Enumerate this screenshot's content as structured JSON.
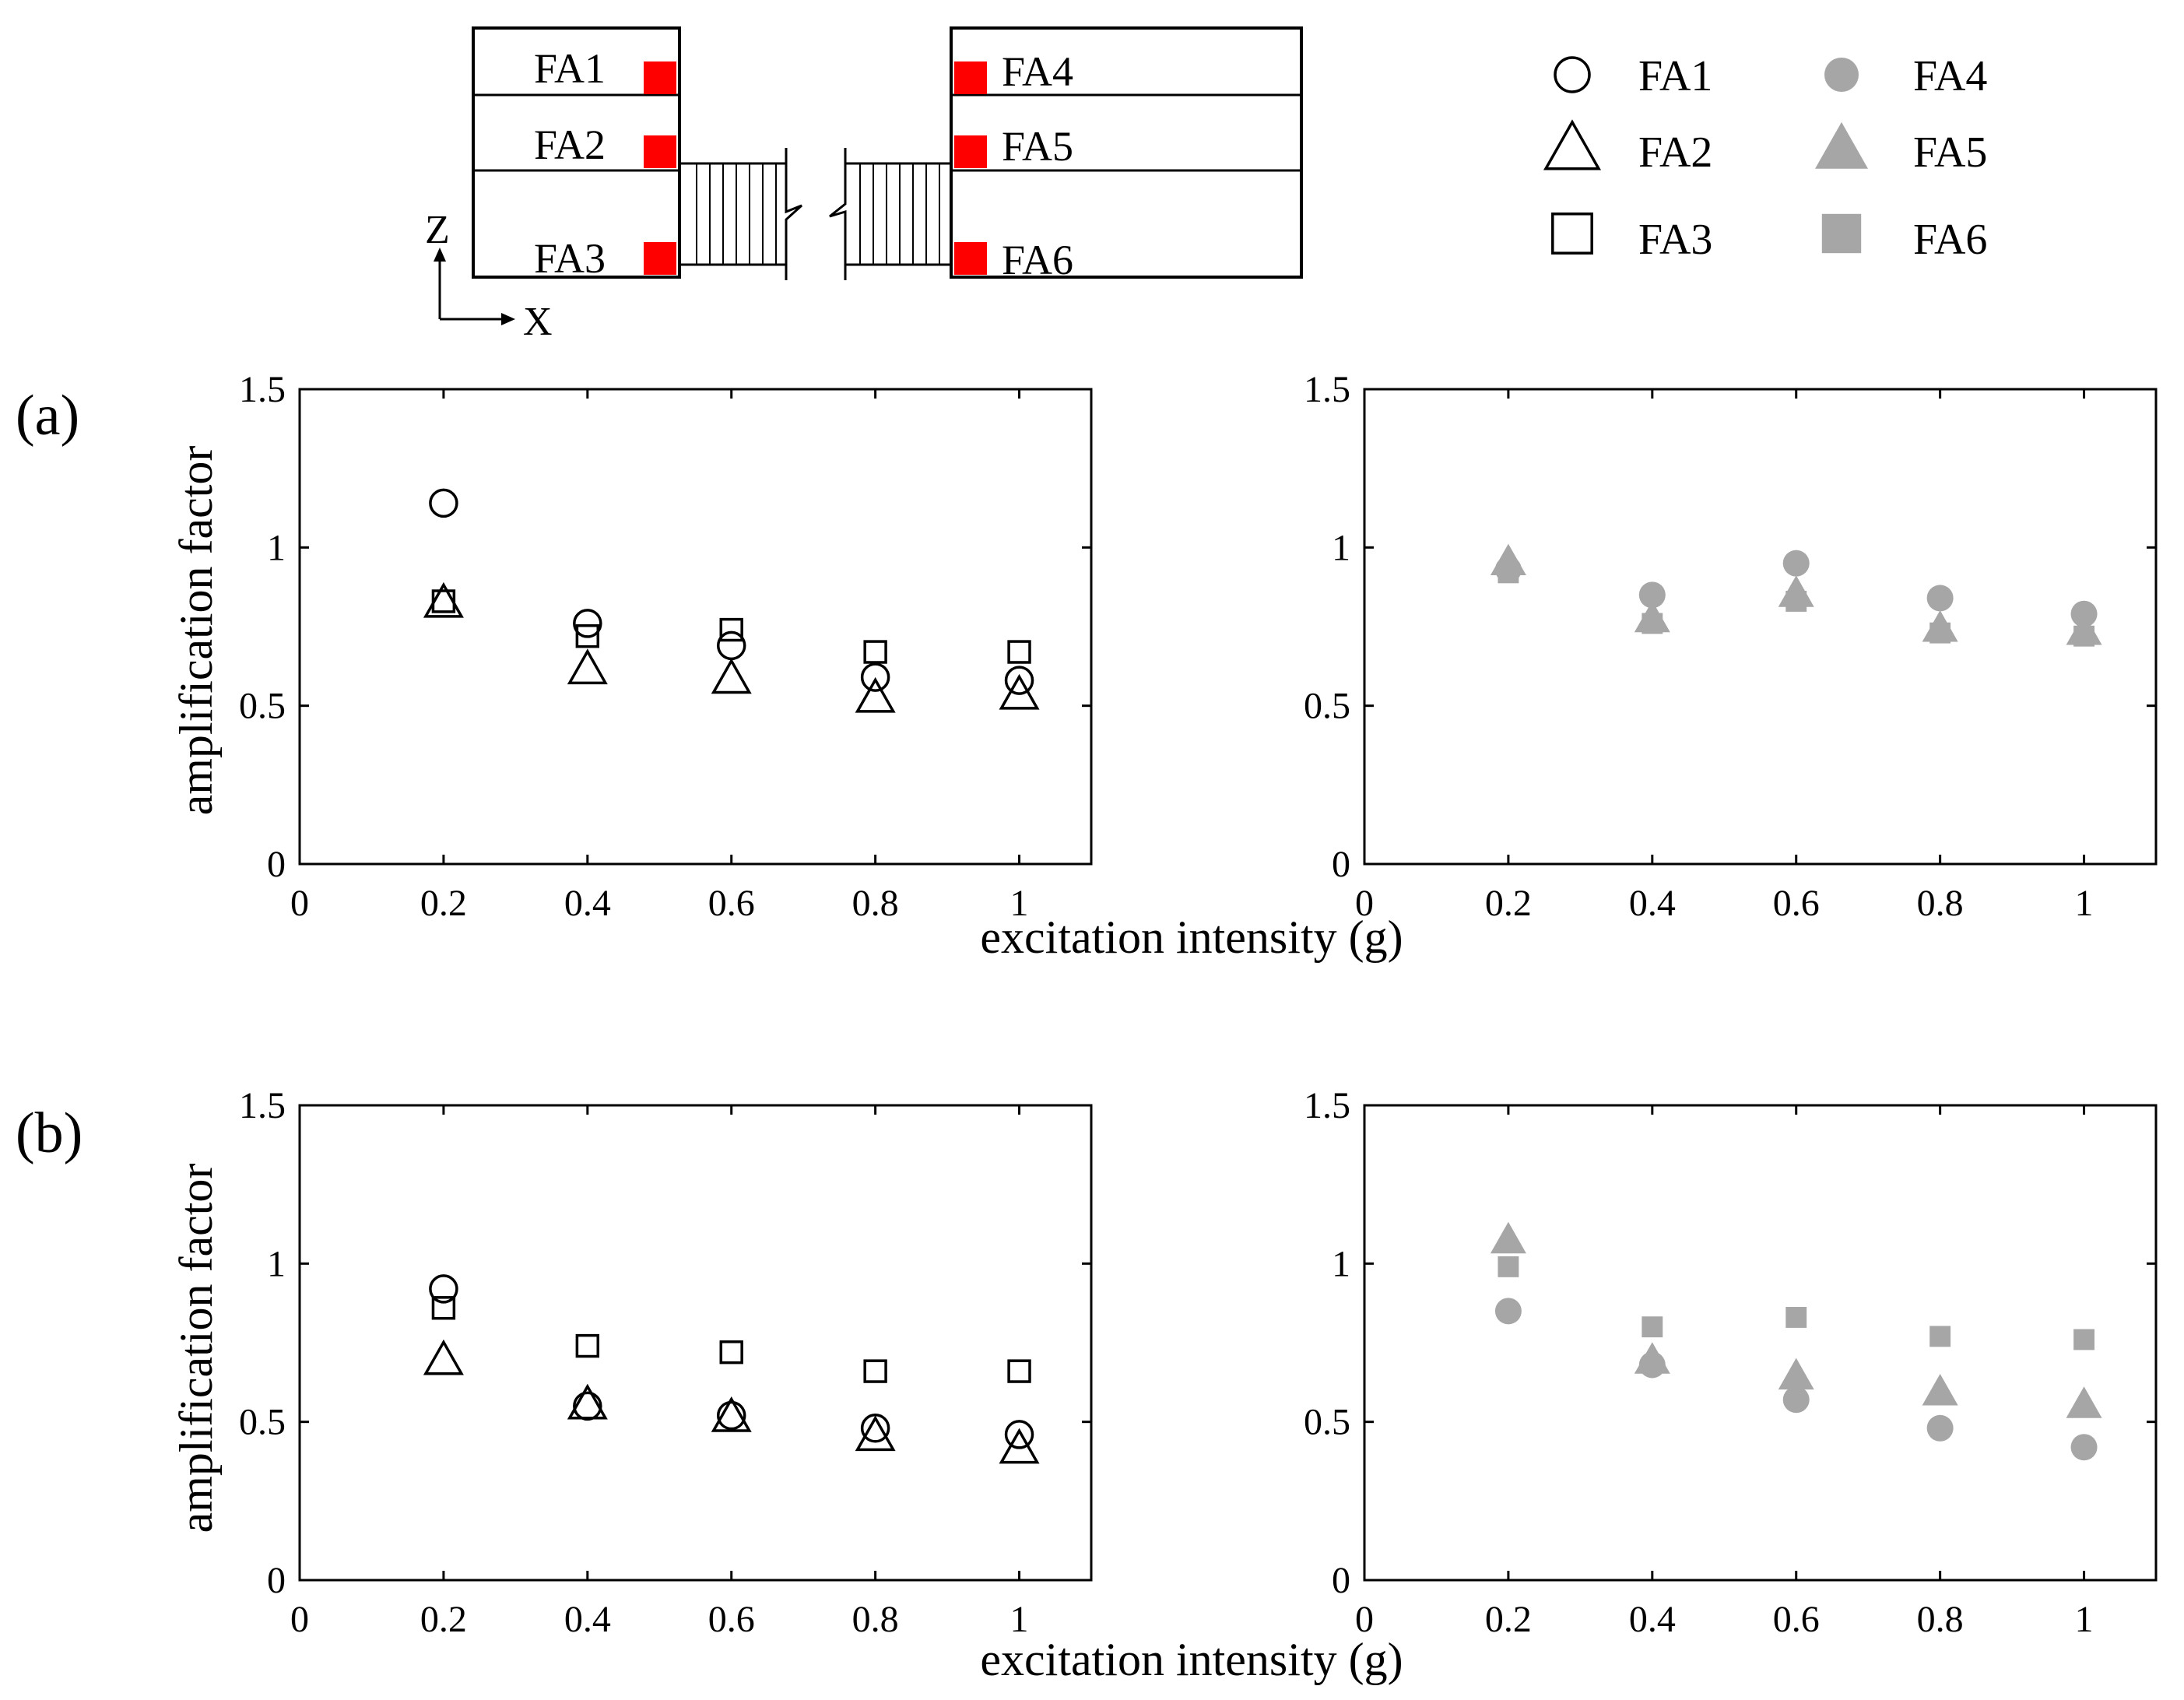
{
  "schematic": {
    "labels": [
      "FA1",
      "FA2",
      "FA3",
      "FA4",
      "FA5",
      "FA6"
    ],
    "axis_z": "Z",
    "axis_x": "X",
    "sensor_color": "#ff0000"
  },
  "legend": {
    "entries": [
      {
        "name": "FA1",
        "marker": "circle",
        "fill": "none",
        "color": "#000000"
      },
      {
        "name": "FA2",
        "marker": "triangle",
        "fill": "none",
        "color": "#000000"
      },
      {
        "name": "FA3",
        "marker": "square",
        "fill": "none",
        "color": "#000000"
      },
      {
        "name": "FA4",
        "marker": "circle",
        "fill": "solid",
        "color": "#a6a6a6"
      },
      {
        "name": "FA5",
        "marker": "triangle",
        "fill": "solid",
        "color": "#a6a6a6"
      },
      {
        "name": "FA6",
        "marker": "square",
        "fill": "solid",
        "color": "#a6a6a6"
      }
    ]
  },
  "rows": [
    {
      "label": "(a)",
      "ylabel": "amplification factor"
    },
    {
      "label": "(b)",
      "ylabel": "amplification factor"
    }
  ],
  "xlabel": "excitation intensity (g)",
  "chart_data": [
    {
      "type": "scatter",
      "panel": "(a) left",
      "xlabel": "excitation intensity (g)",
      "ylabel": "amplification factor",
      "xlim": [
        0,
        1.1
      ],
      "ylim": [
        0,
        1.5
      ],
      "xticks": [
        "0",
        "0.2",
        "0.4",
        "0.6",
        "0.8",
        "1"
      ],
      "yticks": [
        "0",
        "0.5",
        "1",
        "1.5"
      ],
      "x": [
        0.2,
        0.4,
        0.6,
        0.8,
        1.0
      ],
      "series": [
        {
          "name": "FA1",
          "marker": "circle",
          "fill": "none",
          "color": "#000000",
          "values": [
            1.14,
            0.76,
            0.69,
            0.59,
            0.58
          ]
        },
        {
          "name": "FA2",
          "marker": "triangle",
          "fill": "none",
          "color": "#000000",
          "values": [
            0.82,
            0.61,
            0.58,
            0.52,
            0.53
          ]
        },
        {
          "name": "FA3",
          "marker": "square",
          "fill": "none",
          "color": "#000000",
          "values": [
            0.83,
            0.72,
            0.74,
            0.67,
            0.67
          ]
        }
      ]
    },
    {
      "type": "scatter",
      "panel": "(a) right",
      "xlabel": "excitation intensity (g)",
      "ylabel": "amplification factor",
      "xlim": [
        0,
        1.1
      ],
      "ylim": [
        0,
        1.5
      ],
      "xticks": [
        "0",
        "0.2",
        "0.4",
        "0.6",
        "0.8",
        "1"
      ],
      "yticks": [
        "0",
        "0.5",
        "1",
        "1.5"
      ],
      "x": [
        0.2,
        0.4,
        0.6,
        0.8,
        1.0
      ],
      "series": [
        {
          "name": "FA4",
          "marker": "circle",
          "fill": "solid",
          "color": "#a6a6a6",
          "values": [
            0.93,
            0.85,
            0.95,
            0.84,
            0.79
          ]
        },
        {
          "name": "FA5",
          "marker": "triangle",
          "fill": "solid",
          "color": "#a6a6a6",
          "values": [
            0.95,
            0.77,
            0.85,
            0.74,
            0.73
          ]
        },
        {
          "name": "FA6",
          "marker": "square",
          "fill": "solid",
          "color": "#a6a6a6",
          "values": [
            0.92,
            0.76,
            0.83,
            0.73,
            0.72
          ]
        }
      ]
    },
    {
      "type": "scatter",
      "panel": "(b) left",
      "xlabel": "excitation intensity (g)",
      "ylabel": "amplification factor",
      "xlim": [
        0,
        1.1
      ],
      "ylim": [
        0,
        1.5
      ],
      "xticks": [
        "0",
        "0.2",
        "0.4",
        "0.6",
        "0.8",
        "1"
      ],
      "yticks": [
        "0",
        "0.5",
        "1",
        "1.5"
      ],
      "x": [
        0.2,
        0.4,
        0.6,
        0.8,
        1.0
      ],
      "series": [
        {
          "name": "FA1",
          "marker": "circle",
          "fill": "none",
          "color": "#000000",
          "values": [
            0.92,
            0.55,
            0.52,
            0.48,
            0.46
          ]
        },
        {
          "name": "FA2",
          "marker": "triangle",
          "fill": "none",
          "color": "#000000",
          "values": [
            0.69,
            0.55,
            0.51,
            0.45,
            0.41
          ]
        },
        {
          "name": "FA3",
          "marker": "square",
          "fill": "none",
          "color": "#000000",
          "values": [
            0.86,
            0.74,
            0.72,
            0.66,
            0.66
          ]
        }
      ]
    },
    {
      "type": "scatter",
      "panel": "(b) right",
      "xlabel": "excitation intensity (g)",
      "ylabel": "amplification factor",
      "xlim": [
        0,
        1.1
      ],
      "ylim": [
        0,
        1.5
      ],
      "xticks": [
        "0",
        "0.2",
        "0.4",
        "0.6",
        "0.8",
        "1"
      ],
      "yticks": [
        "0",
        "0.5",
        "1",
        "1.5"
      ],
      "x": [
        0.2,
        0.4,
        0.6,
        0.8,
        1.0
      ],
      "series": [
        {
          "name": "FA4",
          "marker": "circle",
          "fill": "solid",
          "color": "#a6a6a6",
          "values": [
            0.85,
            0.68,
            0.57,
            0.48,
            0.42
          ]
        },
        {
          "name": "FA5",
          "marker": "triangle",
          "fill": "solid",
          "color": "#a6a6a6",
          "values": [
            1.07,
            0.69,
            0.64,
            0.59,
            0.55
          ]
        },
        {
          "name": "FA6",
          "marker": "square",
          "fill": "solid",
          "color": "#a6a6a6",
          "values": [
            0.99,
            0.8,
            0.83,
            0.77,
            0.76
          ]
        }
      ]
    }
  ]
}
